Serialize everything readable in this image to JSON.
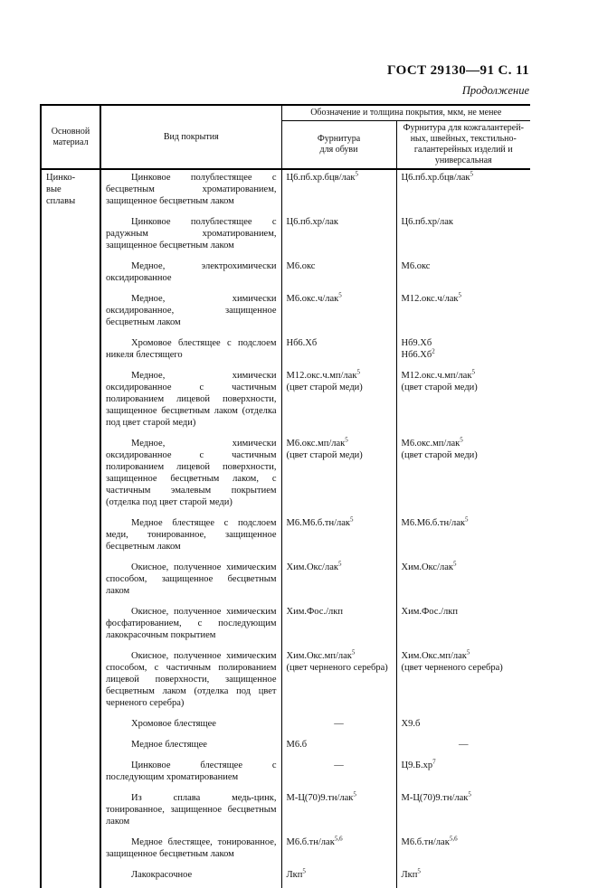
{
  "page": {
    "doc_ref": "ГОСТ 29130—91 С. 11",
    "continuation_label": "Продолжение"
  },
  "table": {
    "headers": {
      "base_material": "Основной материал",
      "coating_type": "Вид покрытия",
      "designation_span": "Обозначение и толщина покрытия, мкм, не менее",
      "footwear_lines": [
        "Фурнитура",
        "для обуви"
      ],
      "haberdashery_lines": [
        "Фурнитура для кожгалантерей-",
        "ных, швейных, текстильно-",
        "галантерейных изделий и",
        "универсальная"
      ]
    },
    "material_lines": [
      "Цинко-",
      "вые",
      "сплавы"
    ],
    "rows": [
      {
        "coating": "Цинковое полублестящее с бесцветным хроматированием, защищенное бесцветным лаком",
        "footwear": [
          "Ц6.пб.хр.бцв/лак^5"
        ],
        "haberdashery": [
          "Ц6.пб.хр.бцв/лак^5"
        ]
      },
      {
        "coating": "Цинковое полублестящее с радужным хроматированием, защищенное бесцветным лаком",
        "footwear": [
          "Ц6.пб.хр/лак"
        ],
        "haberdashery": [
          "Ц6.пб.хр/лак"
        ]
      },
      {
        "coating": "Медное, электрохимически оксидированное",
        "footwear": [
          "М6.окс"
        ],
        "haberdashery": [
          "М6.окс"
        ]
      },
      {
        "coating": "Медное, химически оксидированное, защищенное бесцветным лаком",
        "footwear": [
          "М6.окс.ч/лак^5"
        ],
        "haberdashery": [
          "М12.окс.ч/лак^5"
        ]
      },
      {
        "coating": "Хромовое блестящее с подслоем никеля блестящего",
        "footwear": [
          "Нб6.Хб"
        ],
        "haberdashery": [
          "Нб9.Хб",
          "Нб6.Хб^2"
        ]
      },
      {
        "coating": "Медное, химически оксидированное с частичным полированием лицевой поверхности, защищенное бесцветным лаком (отделка под цвет старой меди)",
        "footwear": [
          "М12.окс.ч.мп/лак^5",
          "(цвет старой меди)"
        ],
        "haberdashery": [
          "М12.окс.ч.мп/лак^5",
          "(цвет старой меди)"
        ]
      },
      {
        "coating": "Медное, химически оксидированное с частичным полированием лицевой поверхности, защищенное бесцветным лаком, с частичным эмалевым покрытием (отделка под цвет старой меди)",
        "footwear": [
          "М6.окс.мп/лак^5",
          "(цвет старой меди)"
        ],
        "haberdashery": [
          "М6.окс.мп/лак^5",
          "(цвет старой меди)"
        ]
      },
      {
        "coating": "Медное блестящее с подслоем меди, тонированное, защищенное бесцветным лаком",
        "footwear": [
          "М6.М6.б.тн/лак^5"
        ],
        "haberdashery": [
          "М6.М6.б.тн/лак^5"
        ]
      },
      {
        "coating": "Окисное, полученное химическим способом, защищенное бесцветным лаком",
        "footwear": [
          "Хим.Окс/лак^5"
        ],
        "haberdashery": [
          "Хим.Окс/лак^5"
        ]
      },
      {
        "coating": "Окисное, полученное химическим фосфатированием, с последующим лакокрасочным покрытием",
        "footwear": [
          "Хим.Фос./лкп"
        ],
        "haberdashery": [
          "Хим.Фос./лкп"
        ]
      },
      {
        "coating": "Окисное, полученное химическим способом, с частичным полированием лицевой поверхности, защищенное бесцветным лаком (отделка под цвет черненого серебра)",
        "footwear": [
          "Хим.Окс.мп/лак^5",
          "(цвет черненого серебра)"
        ],
        "haberdashery": [
          "Хим.Окс.мп/лак^5",
          "(цвет черненого серебра)"
        ]
      },
      {
        "coating": "Хромовое блестящее",
        "footwear": [
          "—"
        ],
        "haberdashery": [
          "Х9.б"
        ]
      },
      {
        "coating": "Медное блестящее",
        "footwear": [
          "М6.б"
        ],
        "haberdashery": [
          "—"
        ]
      },
      {
        "coating": "Цинковое блестящее с последующим хроматированием",
        "footwear": [
          "—"
        ],
        "haberdashery": [
          "Ц9.Б.хр^7"
        ]
      },
      {
        "coating": "Из сплава медь-цинк, тонированное, защищенное бесцветным лаком",
        "footwear": [
          "М-Ц(70)9.тн/лак^5"
        ],
        "haberdashery": [
          "М-Ц(70)9.тн/лак^5"
        ]
      },
      {
        "coating": "Медное блестящее, тонированное, защищенное бесцветным лаком",
        "footwear": [
          "М6.б.тн/лак^5,6"
        ],
        "haberdashery": [
          "М6.б.тн/лак^5,6"
        ]
      },
      {
        "coating": "Лакокрасочное",
        "footwear": [
          "Лкп^5"
        ],
        "haberdashery": [
          "Лкп^5"
        ]
      }
    ]
  }
}
